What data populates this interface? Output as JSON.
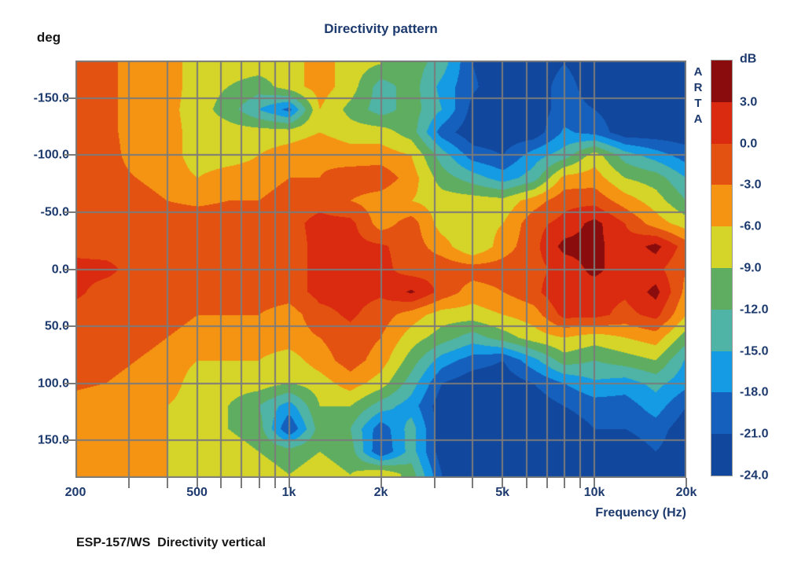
{
  "title": "Directivity pattern",
  "caption": "ESP-157/WS  Directivity vertical",
  "watermark": "ARTA",
  "colors": {
    "text_navy": "#1D3A6E",
    "text_black": "#161616",
    "grid": "#7B7B7B",
    "background": "#FFFFFF"
  },
  "y_axis": {
    "unit": "deg",
    "tick_labels": [
      "-150.0",
      "-100.0",
      "-50.0",
      "0.0",
      "50.0",
      "100.0",
      "150.0"
    ],
    "tick_angles": [
      -150,
      -100,
      -50,
      0,
      50,
      100,
      150
    ],
    "range_deg": [
      -183,
      183
    ]
  },
  "x_axis": {
    "label": "Frequency (Hz)",
    "tick_labels": [
      "200",
      "500",
      "1k",
      "2k",
      "5k",
      "10k",
      "20k"
    ],
    "tick_freqs": [
      200,
      500,
      1000,
      2000,
      5000,
      10000,
      20000
    ],
    "minor_tick_freqs": [
      300,
      400,
      500,
      600,
      700,
      800,
      900,
      1000,
      2000,
      3000,
      4000,
      5000,
      6000,
      7000,
      8000,
      9000,
      10000,
      20000
    ],
    "range_hz": [
      200,
      20000
    ],
    "scale": "log"
  },
  "legend": {
    "unit": "dB",
    "boundary_labels": [
      "3.0",
      "0.0",
      "-3.0",
      "-6.0",
      "-9.0",
      "-12.0",
      "-15.0",
      "-18.0",
      "-21.0",
      "-24.0"
    ]
  },
  "chart_data": {
    "type": "heatmap",
    "title": "Directivity pattern",
    "xlabel": "Frequency (Hz)",
    "ylabel": "deg",
    "x_frequencies": [
      200,
      252,
      317,
      399,
      502,
      632,
      796,
      1002,
      1262,
      1589,
      2000,
      2518,
      3170,
      3991,
      5024,
      6325,
      7962,
      10024,
      12619,
      15887,
      20000
    ],
    "y_angles_deg": [
      -180,
      -160,
      -140,
      -120,
      -100,
      -80,
      -60,
      -40,
      -20,
      0,
      20,
      40,
      60,
      80,
      100,
      120,
      140,
      160,
      180
    ],
    "values_db": [
      [
        -1.5,
        -2,
        -4.5,
        -4.5,
        -7.5,
        -7.5,
        -7.5,
        -7.5,
        -4.5,
        -7.5,
        -9,
        -10.5,
        -13.5,
        -21,
        -23,
        -23,
        -21,
        -23,
        -23,
        -23,
        -23
      ],
      [
        -1.5,
        -2,
        -4.5,
        -4.5,
        -7.5,
        -9,
        -10.5,
        -7.5,
        -4.5,
        -7.5,
        -13.5,
        -10.5,
        -16,
        -20.5,
        -23,
        -23,
        -19.5,
        -23,
        -23,
        -23,
        -23
      ],
      [
        -1.5,
        -2,
        -4.5,
        -5,
        -7.5,
        -10.5,
        -15,
        -19,
        -6,
        -10,
        -13.5,
        -10.5,
        -15,
        -22,
        -23,
        -23,
        -19.5,
        -21,
        -23,
        -23,
        -23
      ],
      [
        -1.5,
        -2,
        -4.5,
        -4.5,
        -7.5,
        -7.5,
        -7.5,
        -7.5,
        -6,
        -7.5,
        -7.5,
        -10.5,
        -19.5,
        -23,
        -23,
        -23,
        -17.5,
        -19,
        -23,
        -23,
        -23
      ],
      [
        -1.5,
        -1.5,
        -4.5,
        -4.5,
        -7.5,
        -7.5,
        -6,
        -4.5,
        -3.5,
        -4.5,
        -4.5,
        -6,
        -13.5,
        -19.5,
        -21,
        -16.5,
        -13.5,
        -7.5,
        -13.5,
        -16.5,
        -19.5
      ],
      [
        -1.5,
        -1.5,
        -3,
        -4.5,
        -6,
        -4.5,
        -4.5,
        -3,
        -3,
        -1.5,
        -1,
        -4.5,
        -10.5,
        -13.5,
        -16.5,
        -13.5,
        -5,
        -4.5,
        -9,
        -10.5,
        -15
      ],
      [
        -1.5,
        -1.5,
        -1.5,
        -3,
        -3.5,
        -3,
        -3,
        -1.5,
        -1,
        -3,
        -4.5,
        -6,
        -7.5,
        -7.5,
        -8,
        -4.5,
        -1,
        -1,
        -4.5,
        -7.5,
        -12
      ],
      [
        -1.5,
        -1.5,
        -1.5,
        -1.5,
        -1.5,
        -1.5,
        -1.5,
        -1,
        1,
        1,
        -4.5,
        -1.5,
        -7.5,
        -7.5,
        -6,
        -1,
        1,
        4,
        0,
        -4.5,
        -7.5
      ],
      [
        -1,
        -1.5,
        -1.5,
        -1.5,
        -1.5,
        -1.5,
        -1.5,
        -1.5,
        1,
        1,
        0.5,
        -1.5,
        -4.5,
        -9,
        -4.5,
        -1,
        4,
        4,
        1,
        4,
        -1.5
      ],
      [
        1,
        1,
        -1.5,
        -1.5,
        -1.5,
        -1.5,
        -1.5,
        -1.5,
        1,
        1,
        1,
        -1.5,
        -1,
        -1.5,
        -1.5,
        -1,
        1,
        4,
        1,
        1,
        -3
      ],
      [
        0.8,
        -1.5,
        -1.5,
        -1.5,
        -1.5,
        -1.5,
        -1.5,
        -1.5,
        1,
        1,
        0.5,
        3.5,
        -1,
        -4.5,
        -3,
        -1,
        3,
        1,
        0.5,
        4,
        -4
      ],
      [
        -1.5,
        -1.5,
        -1.5,
        -1.5,
        -3,
        -3,
        -3,
        -4.5,
        -1,
        0.5,
        -1.5,
        -4.5,
        -7.5,
        -7.5,
        -6,
        -4.5,
        1,
        1,
        -1,
        1,
        -6
      ],
      [
        -1.5,
        -1.5,
        -1.5,
        -3,
        -4.5,
        -4.5,
        -4.5,
        -4.5,
        -3,
        -1,
        -3,
        -7.5,
        -10.5,
        -13.5,
        -10.5,
        -7.5,
        -6,
        -7.5,
        -6,
        -4.5,
        -10.5
      ],
      [
        -1.5,
        -1.5,
        -3,
        -4.5,
        -6,
        -6,
        -6,
        -7.5,
        -4.5,
        -1.5,
        -4.5,
        -10.5,
        -16.5,
        -19.5,
        -21,
        -16,
        -10.5,
        -12,
        -10.5,
        -9,
        -15.5
      ],
      [
        -2.5,
        -3,
        -4.5,
        -4.5,
        -7.5,
        -7.5,
        -7.5,
        -9,
        -7.5,
        -4.5,
        -7.5,
        -13.5,
        -21,
        -23,
        -23,
        -21,
        -18,
        -15.5,
        -16.5,
        -14,
        -17
      ],
      [
        -4,
        -4.5,
        -4.5,
        -6,
        -7.5,
        -9,
        -12,
        -16.5,
        -9,
        -9,
        -13.5,
        -16.5,
        -23,
        -23,
        -23,
        -23,
        -21,
        -19.5,
        -19.5,
        -16.5,
        -21
      ],
      [
        -4,
        -4.5,
        -4.5,
        -6,
        -7.5,
        -9,
        -10.5,
        -21,
        -10.5,
        -12,
        -20,
        -13.5,
        -23,
        -23,
        -23,
        -23,
        -23,
        -21,
        -21,
        -19.5,
        -23
      ],
      [
        -4,
        -4.5,
        -4.5,
        -6,
        -7.5,
        -7.5,
        -9,
        -10.5,
        -9,
        -10.5,
        -21,
        -13.5,
        -23,
        -23,
        -23,
        -23,
        -23,
        -23,
        -23,
        -21,
        -23
      ],
      [
        -4,
        -4.5,
        -4.5,
        -6,
        -7.5,
        -7.5,
        -7.5,
        -9,
        -7.5,
        -9,
        -6,
        -10.5,
        -21,
        -23,
        -23,
        -23,
        -23,
        -23,
        -23,
        -23,
        -23
      ]
    ],
    "color_bands": {
      "thresholds_db": [
        3,
        0,
        -3,
        -6,
        -9,
        -12,
        -15,
        -18,
        -21,
        -24
      ],
      "colors": [
        "#8B0C0C",
        "#DA2A10",
        "#E35211",
        "#F59413",
        "#D5D428",
        "#5FAD61",
        "#4FB3A5",
        "#149BE3",
        "#1560BD",
        "#11479C"
      ]
    },
    "grid": true,
    "legend_position": "right"
  }
}
